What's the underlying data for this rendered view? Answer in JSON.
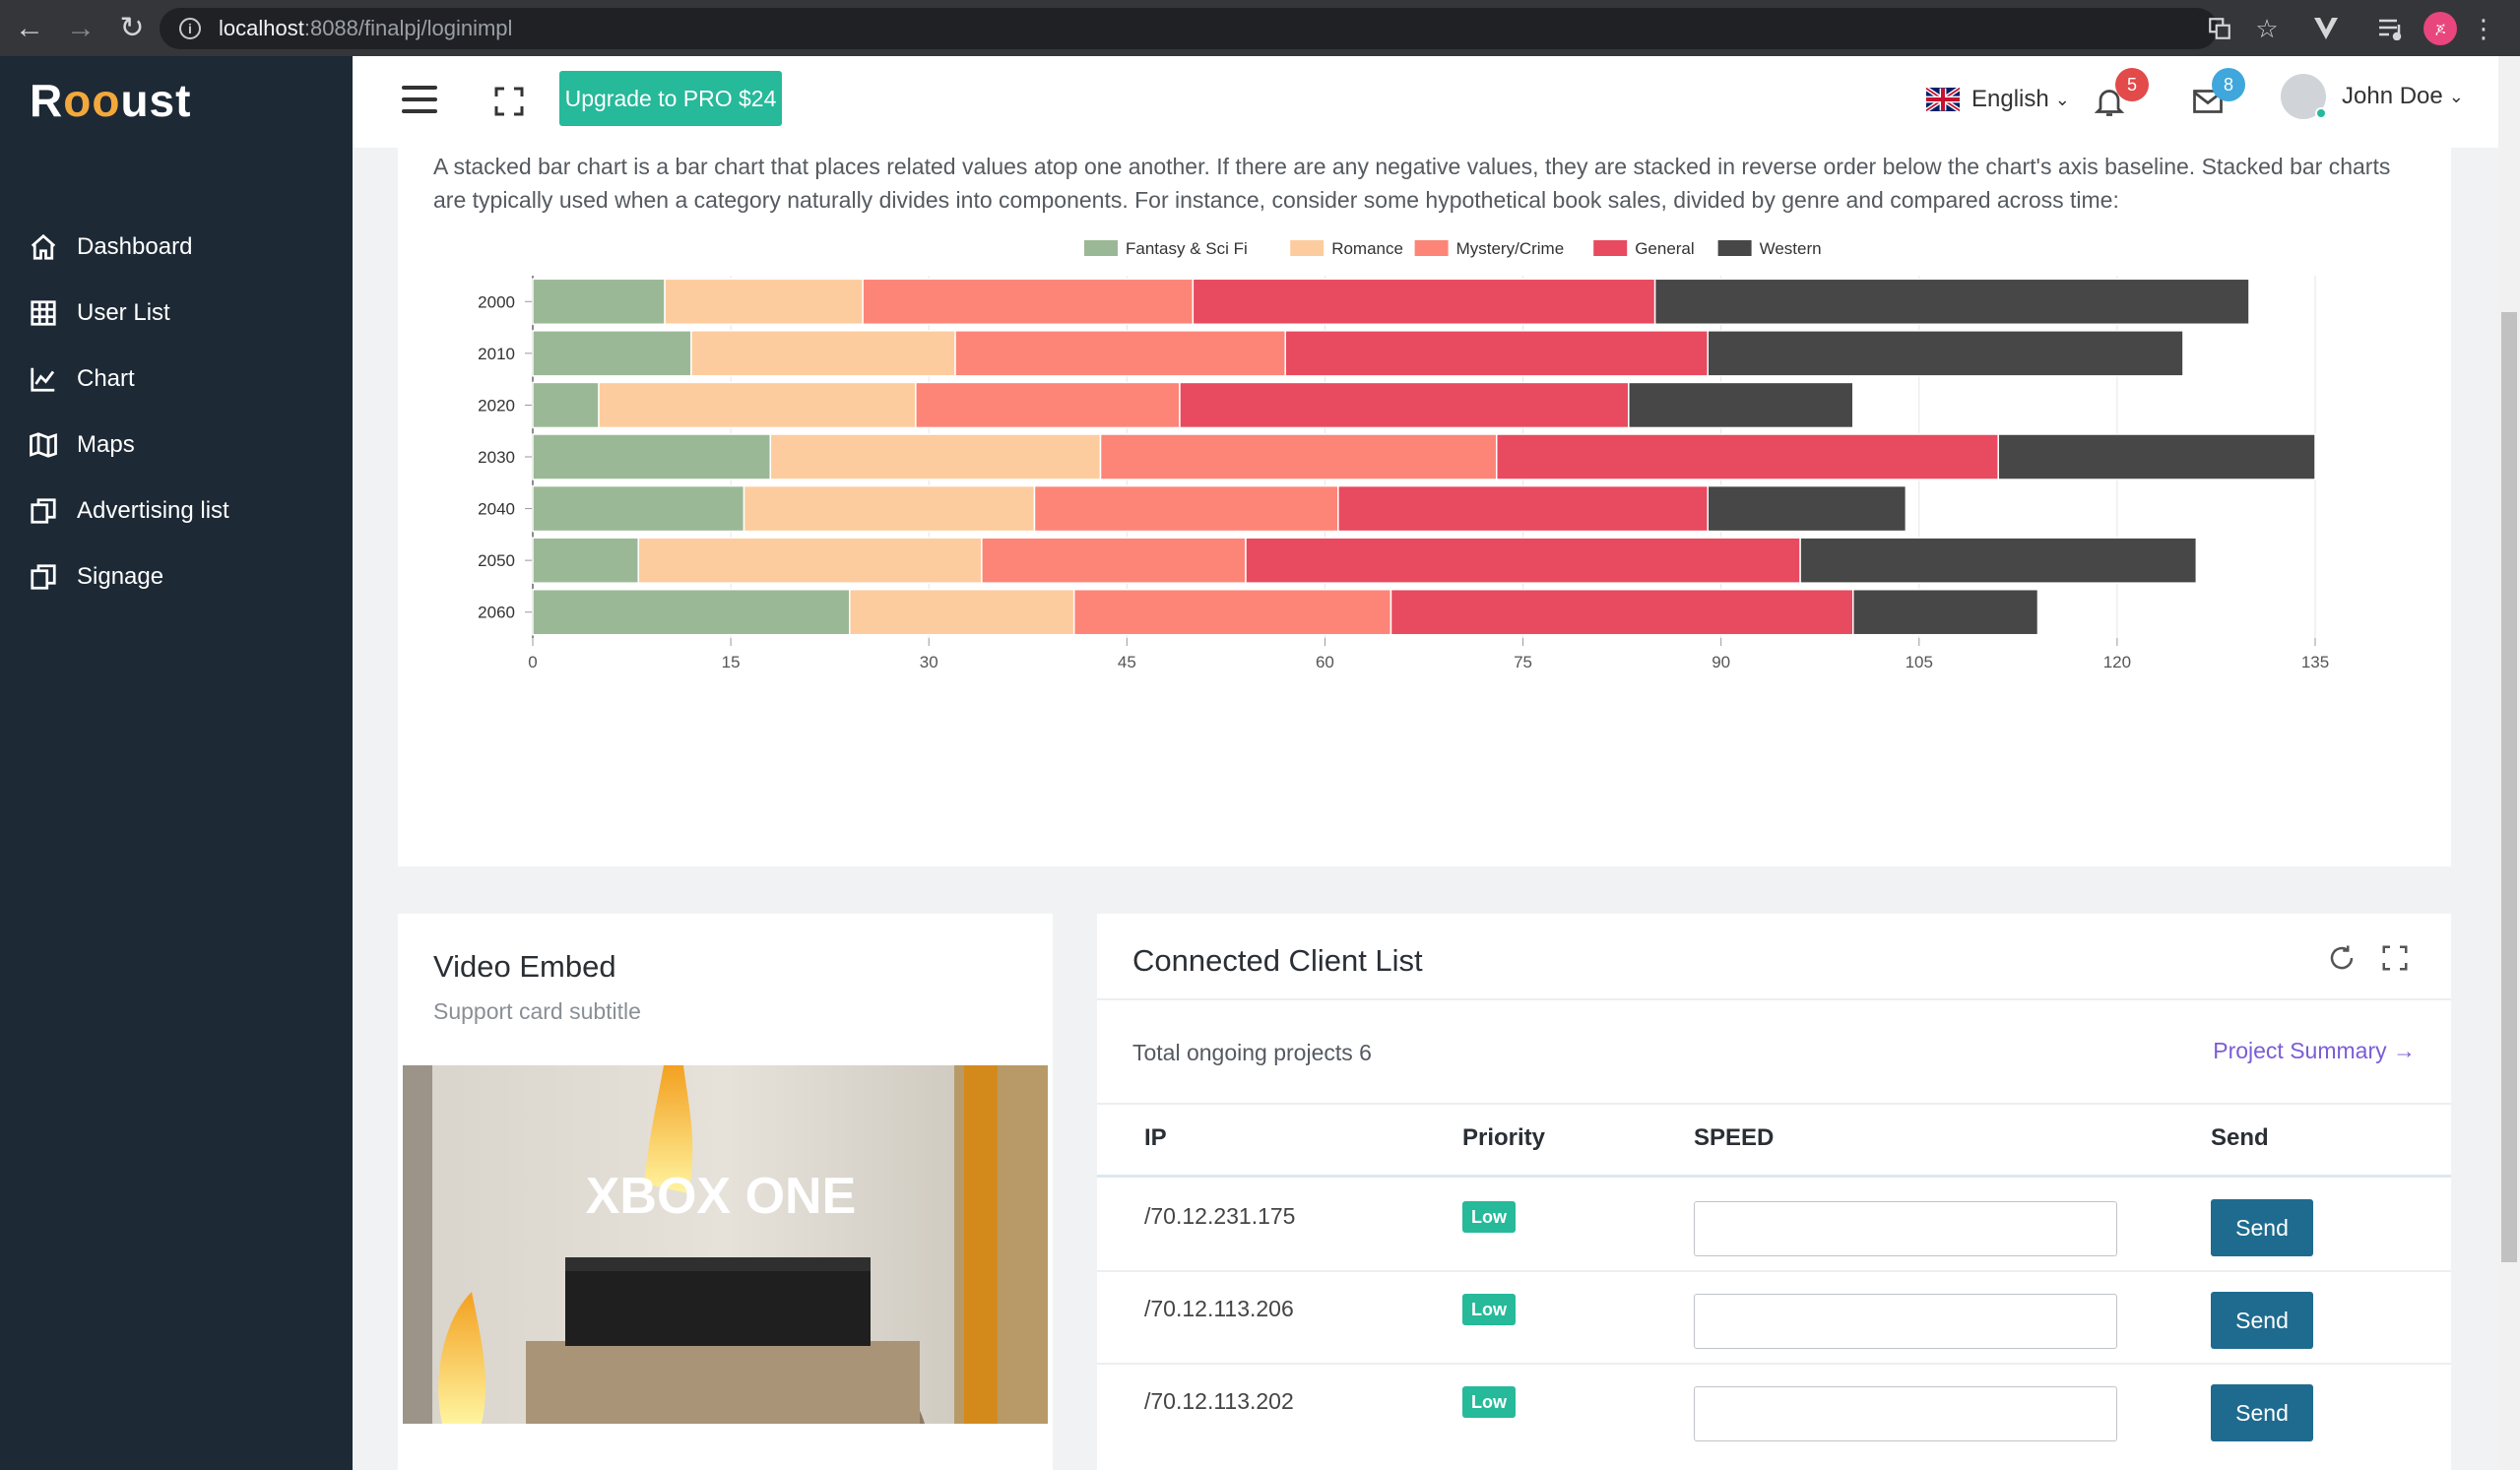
{
  "browser": {
    "url_host": "localhost",
    "url_path": ":8088/finalpj/loginimpl",
    "profile_initial": "ጆ"
  },
  "sidebar": {
    "logo": {
      "pre": "R",
      "mid": "oo",
      "post": "ust"
    },
    "items": [
      {
        "label": "Dashboard",
        "icon": "home-icon"
      },
      {
        "label": "User List",
        "icon": "table-icon"
      },
      {
        "label": "Chart",
        "icon": "line-chart-icon"
      },
      {
        "label": "Maps",
        "icon": "map-icon"
      },
      {
        "label": "Advertising list",
        "icon": "copy-icon"
      },
      {
        "label": "Signage",
        "icon": "copy-icon"
      }
    ]
  },
  "header": {
    "upgrade_label": "Upgrade to PRO $24",
    "language": "English",
    "notifications_count": "5",
    "messages_count": "8",
    "user_name": "John Doe"
  },
  "chart_section": {
    "description": "A stacked bar chart is a bar chart that places related values atop one another. If there are any negative values, they are stacked in reverse order below the chart's axis baseline. Stacked bar charts are typically used when a category naturally divides into components. For instance, consider some hypothetical book sales, divided by genre and compared across time:"
  },
  "chart_data": {
    "type": "bar",
    "orientation": "horizontal",
    "stacked": true,
    "categories": [
      "2000",
      "2010",
      "2020",
      "2030",
      "2040",
      "2050",
      "2060"
    ],
    "series": [
      {
        "name": "Fantasy & Sci Fi",
        "color": "#9bb896",
        "values": [
          10,
          12,
          5,
          18,
          16,
          8,
          24
        ]
      },
      {
        "name": "Romance",
        "color": "#fdcc9e",
        "values": [
          15,
          20,
          24,
          25,
          22,
          26,
          17
        ]
      },
      {
        "name": "Mystery/Crime",
        "color": "#fd8577",
        "values": [
          25,
          25,
          20,
          30,
          23,
          20,
          24
        ]
      },
      {
        "name": "General",
        "color": "#e84a5f",
        "values": [
          35,
          32,
          34,
          38,
          28,
          42,
          35
        ]
      },
      {
        "name": "Western",
        "color": "#474747",
        "values": [
          45,
          36,
          17,
          24,
          15,
          30,
          14
        ]
      }
    ],
    "xlim": [
      0,
      135
    ],
    "xticks": [
      "0",
      "15",
      "30",
      "45",
      "60",
      "75",
      "90",
      "105",
      "120",
      "135"
    ],
    "legend_position": "top-center",
    "grid": true
  },
  "video_card": {
    "title": "Video Embed",
    "subtitle": "Support card subtitle",
    "video_text": "XBOX ONE"
  },
  "client_card": {
    "title": "Connected Client List",
    "total_label": "Total ongoing projects 6",
    "summary_link": "Project Summary",
    "columns": [
      "IP",
      "Priority",
      "SPEED",
      "Send"
    ],
    "rows": [
      {
        "ip": "/70.12.231.175",
        "priority": "Low",
        "send": "Send"
      },
      {
        "ip": "/70.12.113.206",
        "priority": "Low",
        "send": "Send"
      },
      {
        "ip": "/70.12.113.202",
        "priority": "Low",
        "send": "Send"
      }
    ]
  }
}
